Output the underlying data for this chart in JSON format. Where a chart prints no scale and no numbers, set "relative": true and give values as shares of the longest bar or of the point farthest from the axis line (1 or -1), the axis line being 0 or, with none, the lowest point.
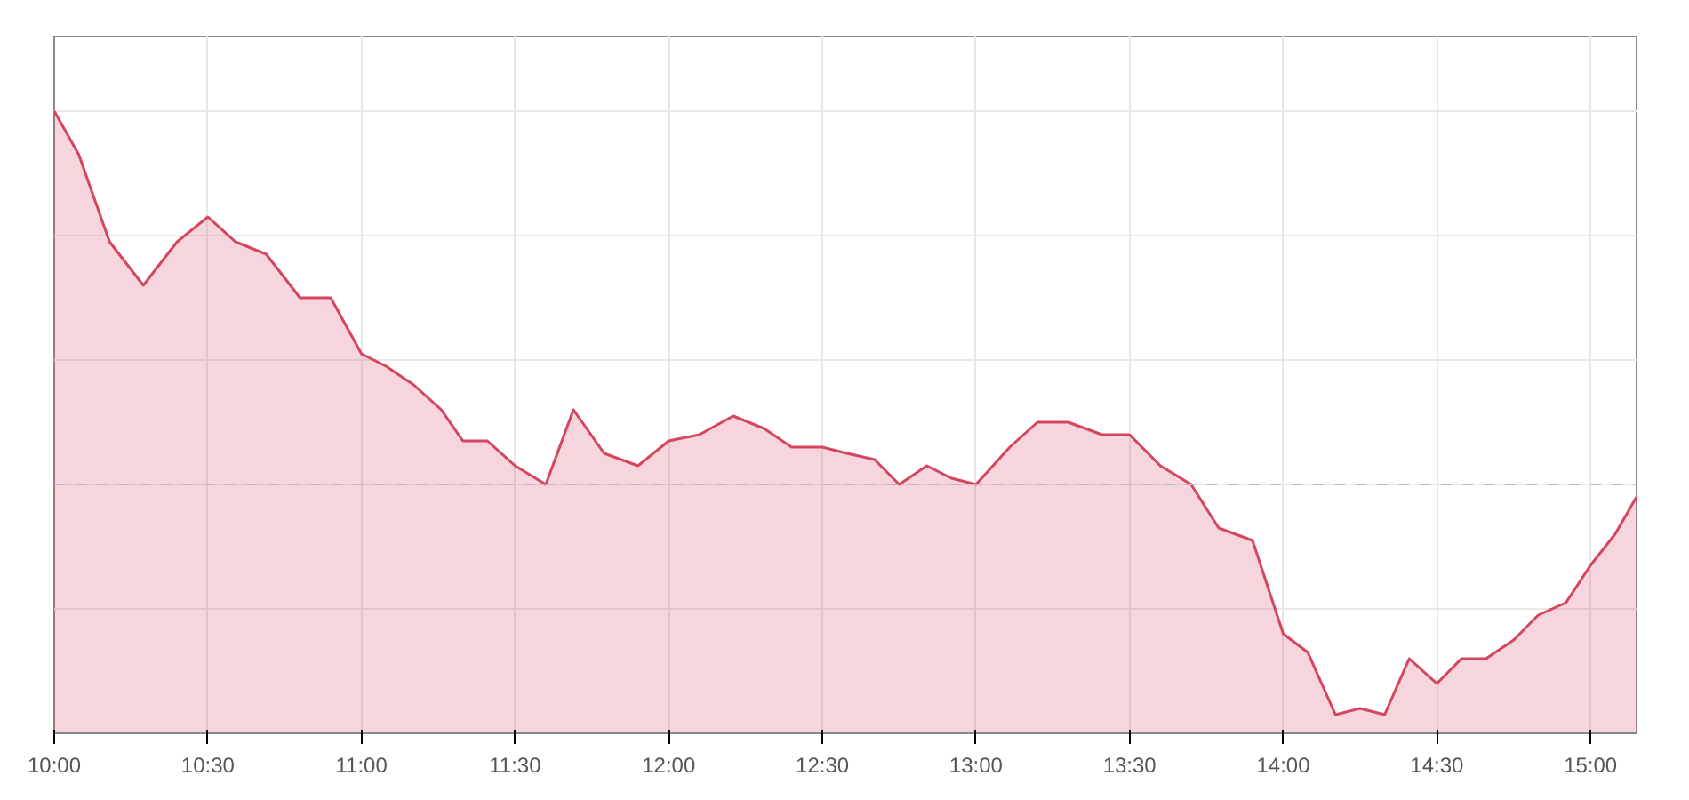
{
  "chart_data": {
    "type": "area",
    "relative": true,
    "x": [
      10.0,
      10.08,
      10.18,
      10.29,
      10.4,
      10.5,
      10.59,
      10.69,
      10.8,
      10.9,
      11.0,
      11.08,
      11.17,
      11.26,
      11.33,
      11.41,
      11.5,
      11.6,
      11.69,
      11.79,
      11.9,
      12.0,
      12.1,
      12.21,
      12.31,
      12.4,
      12.5,
      12.58,
      12.67,
      12.75,
      12.84,
      12.92,
      13.0,
      13.11,
      13.2,
      13.3,
      13.41,
      13.5,
      13.6,
      13.7,
      13.79,
      13.9,
      14.0,
      14.08,
      14.17,
      14.25,
      14.33,
      14.41,
      14.5,
      14.58,
      14.66,
      14.75,
      14.83,
      14.92,
      15.0,
      15.08,
      15.15
    ],
    "series": [
      {
        "color": "#d6455e",
        "values": [
          1.0,
          0.93,
          0.79,
          0.72,
          0.79,
          0.83,
          0.79,
          0.77,
          0.7,
          0.7,
          0.61,
          0.59,
          0.56,
          0.52,
          0.47,
          0.47,
          0.43,
          0.4,
          0.52,
          0.45,
          0.43,
          0.47,
          0.48,
          0.51,
          0.49,
          0.46,
          0.46,
          0.45,
          0.44,
          0.4,
          0.43,
          0.41,
          0.4,
          0.46,
          0.5,
          0.5,
          0.48,
          0.48,
          0.43,
          0.4,
          0.33,
          0.31,
          0.16,
          0.13,
          0.03,
          0.04,
          0.03,
          0.12,
          0.08,
          0.12,
          0.12,
          0.15,
          0.19,
          0.21,
          0.27,
          0.32,
          0.38
        ]
      }
    ],
    "xlim": [
      10.0,
      15.15
    ],
    "xticks": [
      {
        "value": 10.0,
        "label": "10:00"
      },
      {
        "value": 10.5,
        "label": "10:30"
      },
      {
        "value": 11.0,
        "label": "11:00"
      },
      {
        "value": 11.5,
        "label": "11:30"
      },
      {
        "value": 12.0,
        "label": "12:00"
      },
      {
        "value": 12.5,
        "label": "12:30"
      },
      {
        "value": 13.0,
        "label": "13:00"
      },
      {
        "value": 13.5,
        "label": "13:30"
      },
      {
        "value": 14.0,
        "label": "14:00"
      },
      {
        "value": 14.5,
        "label": "14:30"
      },
      {
        "value": 15.0,
        "label": "15:00"
      }
    ],
    "ref_lines": [
      {
        "axis": "y",
        "value": 0.4,
        "label": null,
        "color": "#bbbbbb",
        "line_style": "dashed"
      }
    ],
    "grid": true,
    "line_style": "solid"
  }
}
